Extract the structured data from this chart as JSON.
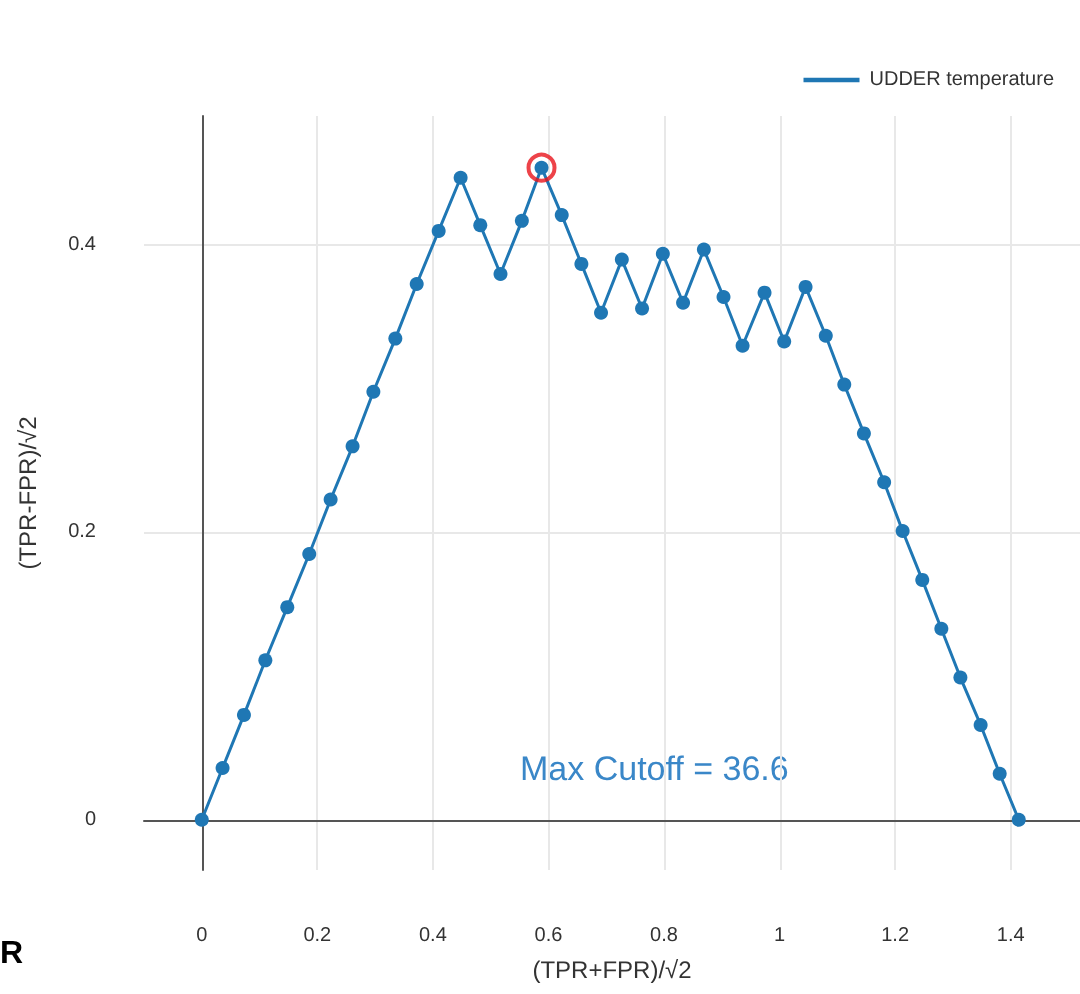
{
  "chart_data": {
    "type": "line",
    "xlabel": "(TPR+FPR)/√2",
    "ylabel": "(TPR-FPR)/√2",
    "series": [
      {
        "name": "UDDER temperature",
        "color": "#1f77b4",
        "x": [
          0,
          0.036,
          0.073,
          0.11,
          0.148,
          0.186,
          0.223,
          0.261,
          0.297,
          0.335,
          0.372,
          0.41,
          0.448,
          0.482,
          0.517,
          0.554,
          0.588,
          0.623,
          0.657,
          0.691,
          0.727,
          0.762,
          0.798,
          0.833,
          0.869,
          0.903,
          0.936,
          0.974,
          1.008,
          1.045,
          1.08,
          1.112,
          1.146,
          1.181,
          1.213,
          1.247,
          1.28,
          1.313,
          1.348,
          1.381,
          1.414
        ],
        "values": [
          0,
          0.036,
          0.073,
          0.111,
          0.148,
          0.185,
          0.223,
          0.26,
          0.298,
          0.335,
          0.373,
          0.41,
          0.447,
          0.414,
          0.38,
          0.417,
          0.454,
          0.421,
          0.387,
          0.353,
          0.39,
          0.356,
          0.394,
          0.36,
          0.397,
          0.364,
          0.33,
          0.367,
          0.333,
          0.371,
          0.337,
          0.303,
          0.269,
          0.235,
          0.201,
          0.167,
          0.133,
          0.099,
          0.066,
          0.032,
          0
        ]
      },
      {
        "type": "scatter",
        "color": "#e8141c",
        "x": [
          0.588
        ],
        "values": [
          0.454
        ]
      }
    ],
    "annotations": [
      "Max Cutoff = 36.6",
      "R"
    ],
    "xlim": [
      -0.1,
      1.52
    ],
    "ylim": [
      -0.035,
      0.49
    ],
    "xticks": [
      0,
      0.2,
      0.4,
      0.6,
      0.8,
      1,
      1.2,
      1.4
    ],
    "yticks": [
      0,
      0.2,
      0.4
    ],
    "grid": true,
    "legend": "top right",
    "marker": "circle",
    "line_style": "solid"
  }
}
